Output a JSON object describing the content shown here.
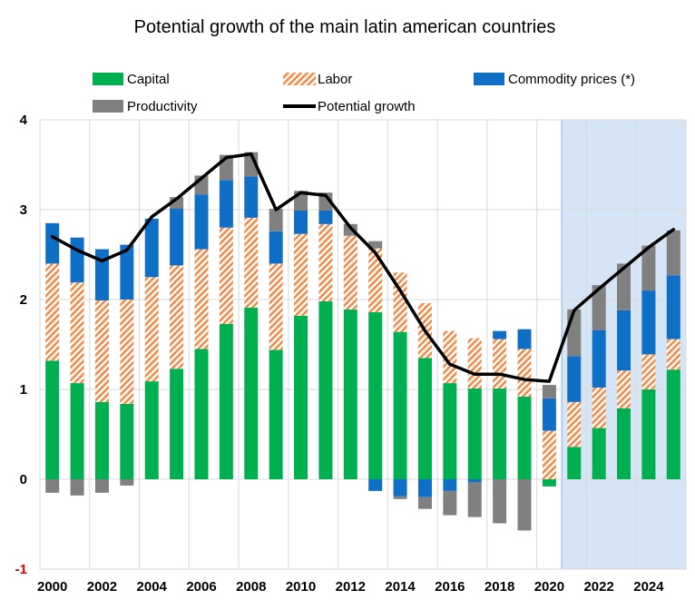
{
  "chart_data": {
    "type": "bar",
    "title": "Potential growth of the main latin american countries",
    "xlabel": "",
    "ylabel": "",
    "ylim": [
      -1,
      4
    ],
    "yticks": [
      -1,
      0,
      1,
      2,
      3,
      4
    ],
    "years": [
      2000,
      2001,
      2002,
      2003,
      2004,
      2005,
      2006,
      2007,
      2008,
      2009,
      2010,
      2011,
      2012,
      2013,
      2014,
      2015,
      2016,
      2017,
      2018,
      2019,
      2020,
      2021,
      2022,
      2023,
      2024,
      2025
    ],
    "xtick_labels": [
      "2000",
      "2002",
      "2004",
      "2006",
      "2008",
      "2010",
      "2012",
      "2014",
      "2016",
      "2018",
      "2020",
      "2022",
      "2024"
    ],
    "forecast_start_year": 2020.5,
    "colors": {
      "capital": "#00b050",
      "labor_stripe": "#f08c4a",
      "commodity": "#0f6fc6",
      "productivity": "#808080",
      "potential": "#000000",
      "forecast_shade": "#d6e5f5",
      "grid": "#d9d9d9",
      "negative_tick": "#e00000"
    },
    "legend": {
      "capital": "Capital",
      "labor": "Labor",
      "commodity": "Commodity prices (*)",
      "productivity": "Productivity",
      "potential": "Potential growth"
    },
    "series": [
      {
        "key": "capital",
        "name": "Capital",
        "values": [
          1.32,
          1.07,
          0.86,
          0.84,
          1.09,
          1.23,
          1.45,
          1.73,
          1.91,
          1.44,
          1.82,
          1.98,
          1.89,
          1.86,
          1.64,
          1.35,
          1.07,
          1.01,
          1.01,
          0.92,
          -0.08,
          0.36,
          0.57,
          0.79,
          1.0,
          1.22
        ]
      },
      {
        "key": "labor",
        "name": "Labor",
        "values": [
          1.08,
          1.12,
          1.13,
          1.16,
          1.16,
          1.15,
          1.11,
          1.07,
          1.0,
          0.96,
          0.91,
          0.86,
          0.82,
          0.71,
          0.66,
          0.61,
          0.58,
          0.56,
          0.55,
          0.53,
          0.54,
          0.5,
          0.45,
          0.42,
          0.39,
          0.34
        ]
      },
      {
        "key": "commodity",
        "name": "Commodity prices (*)",
        "values": [
          0.45,
          0.5,
          0.57,
          0.61,
          0.65,
          0.63,
          0.61,
          0.53,
          0.46,
          0.36,
          0.26,
          0.15,
          0.0,
          -0.13,
          -0.19,
          -0.2,
          -0.13,
          -0.03,
          0.09,
          0.22,
          0.36,
          0.51,
          0.64,
          0.67,
          0.71,
          0.71
        ]
      },
      {
        "key": "productivity",
        "name": "Productivity",
        "values": [
          -0.15,
          -0.18,
          -0.15,
          -0.07,
          0.0,
          0.13,
          0.21,
          0.28,
          0.27,
          0.25,
          0.22,
          0.2,
          0.13,
          0.08,
          -0.03,
          -0.13,
          -0.27,
          -0.39,
          -0.49,
          -0.57,
          0.15,
          0.52,
          0.5,
          0.52,
          0.5,
          0.5
        ]
      },
      {
        "key": "potential",
        "name": "Potential growth",
        "type": "line",
        "values": [
          2.7,
          2.55,
          2.43,
          2.55,
          2.92,
          3.12,
          3.35,
          3.58,
          3.62,
          3.0,
          3.19,
          3.16,
          2.8,
          2.52,
          2.1,
          1.65,
          1.28,
          1.17,
          1.17,
          1.11,
          1.09,
          1.88,
          2.12,
          2.35,
          2.58,
          2.78
        ]
      }
    ]
  }
}
